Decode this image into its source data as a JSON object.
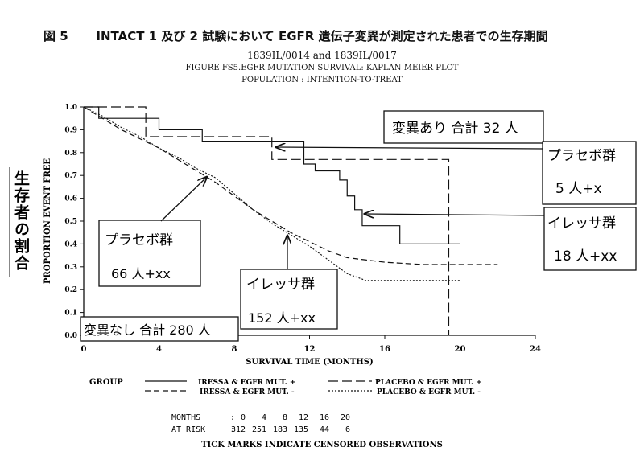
{
  "header": {
    "figure_label": "図 5",
    "title": "INTACT 1 及び 2 試験において EGFR 遺伝子変異が測定された患者での生存期間",
    "study_ids": "1839IL/0014 and 1839IL/0017",
    "figure_subtitle": "FIGURE FS5.EGFR MUTATION SURVIVAL: KAPLAN MEIER PLOT",
    "population": "POPULATION : INTENTION-TO-TREAT"
  },
  "side_label": "生存者の割合",
  "annotations": {
    "mutation_positive_total": "変異あり 合計 32 人",
    "mutation_negative_total": "変異なし 合計 280 人",
    "placebo_pos_label": "プラセボ群",
    "placebo_pos_count": "5 人+x",
    "iressa_pos_label": "イレッサ群",
    "iressa_pos_count": "18 人+xx",
    "placebo_neg_label": "プラセボ群",
    "placebo_neg_count": "66 人+xx",
    "iressa_neg_label": "イレッサ群",
    "iressa_neg_count": "152 人+xx"
  },
  "legend": {
    "group_label": "GROUP",
    "items": [
      {
        "label": "IRESSA & EGFR MUT. +",
        "style": "solid"
      },
      {
        "label": "PLACEBO & EGFR MUT. +",
        "style": "longdash"
      },
      {
        "label": "IRESSA & EGFR MUT. -",
        "style": "dash"
      },
      {
        "label": "PLACEBO & EGFR MUT. -",
        "style": "dotted"
      }
    ]
  },
  "at_risk": {
    "months_label": "MONTHS",
    "at_risk_label": "AT RISK",
    "months": [
      "0",
      "4",
      "8",
      "12",
      "16",
      "20"
    ],
    "counts": [
      "312",
      "251",
      "183",
      "135",
      "44",
      "6"
    ]
  },
  "footnote": "TICK MARKS INDICATE CENSORED OBSERVATIONS",
  "chart_data": {
    "type": "line",
    "xlabel": "SURVIVAL TIME (MONTHS)",
    "ylabel": "PROPORTION EVENT FREE",
    "xlim": [
      0,
      24
    ],
    "ylim": [
      0,
      1
    ],
    "xticks": [
      "0",
      "4",
      "8",
      "12",
      "16",
      "20",
      "24"
    ],
    "yticks": [
      "0.0",
      "0.1",
      "0.2",
      "0.3",
      "0.4",
      "0.5",
      "0.6",
      "0.7",
      "0.8",
      "0.9",
      "1.0"
    ],
    "grid": false,
    "series": [
      {
        "name": "IRESSA & EGFR MUT. +",
        "style": "solid",
        "x": [
          0,
          0.8,
          3.5,
          4.0,
          4.8,
          6.3,
          10.0,
          11.7,
          12.3,
          13.6,
          14.0,
          14.4,
          14.8,
          16.8,
          20.0
        ],
        "y": [
          1.0,
          0.95,
          0.95,
          0.9,
          0.9,
          0.85,
          0.85,
          0.75,
          0.72,
          0.68,
          0.61,
          0.55,
          0.48,
          0.4,
          0.4
        ]
      },
      {
        "name": "PLACEBO & EGFR MUT. +",
        "style": "longdash",
        "x": [
          0,
          3.3,
          10.0,
          19.4,
          19.4
        ],
        "y": [
          1.0,
          0.87,
          0.77,
          0.77,
          0.0
        ]
      },
      {
        "name": "IRESSA & EGFR MUT. -",
        "style": "dash",
        "x": [
          0,
          1,
          2,
          3,
          4,
          5,
          6,
          7,
          8,
          9,
          10,
          11,
          12,
          13,
          14,
          15,
          16,
          18,
          20,
          22
        ],
        "y": [
          1.0,
          0.95,
          0.9,
          0.86,
          0.82,
          0.77,
          0.72,
          0.67,
          0.61,
          0.55,
          0.5,
          0.45,
          0.41,
          0.37,
          0.34,
          0.33,
          0.32,
          0.31,
          0.31,
          0.31
        ]
      },
      {
        "name": "PLACEBO & EGFR MUT. -",
        "style": "dotted",
        "x": [
          0,
          1,
          2,
          3,
          4,
          5,
          6,
          7,
          8,
          9,
          10,
          11,
          12,
          13,
          14,
          15,
          16,
          18,
          20
        ],
        "y": [
          1.0,
          0.96,
          0.91,
          0.87,
          0.82,
          0.78,
          0.73,
          0.69,
          0.62,
          0.55,
          0.49,
          0.44,
          0.39,
          0.33,
          0.27,
          0.24,
          0.24,
          0.24,
          0.24
        ]
      }
    ]
  }
}
